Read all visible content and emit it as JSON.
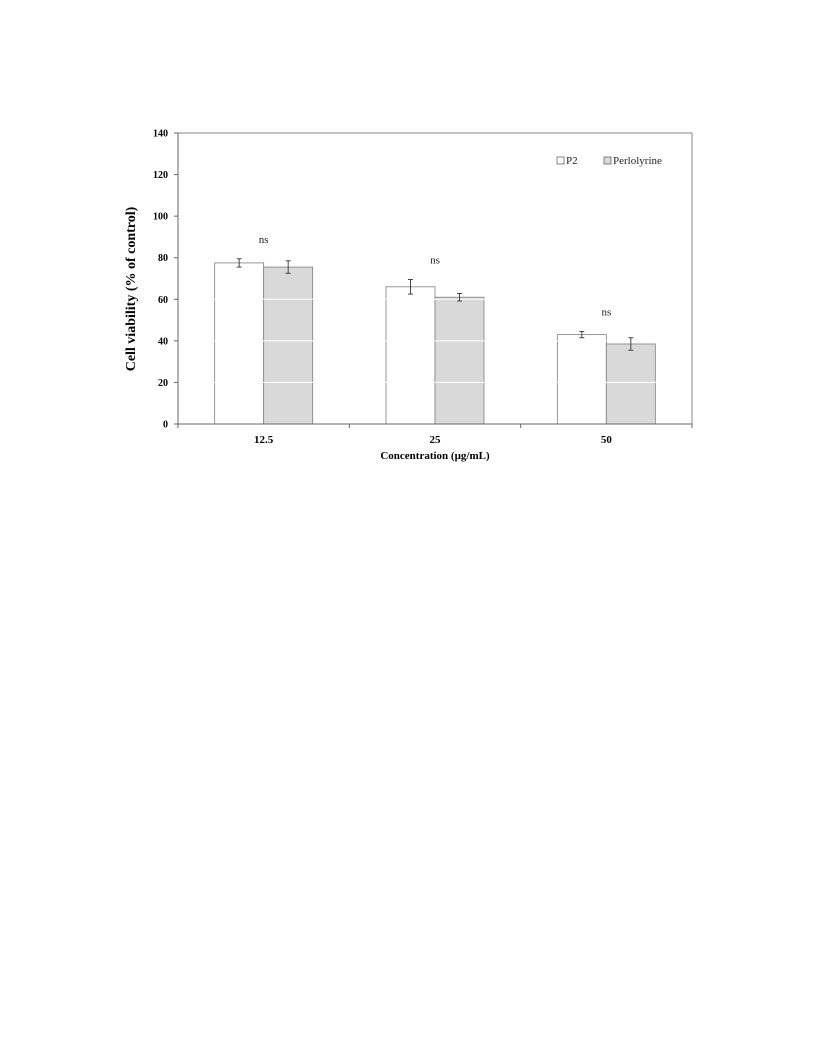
{
  "chart_data": {
    "type": "bar",
    "title": "",
    "xlabel": "Concentration (µg/mL)",
    "ylabel": "Cell viability (% of control)",
    "categories": [
      "12.5",
      "25",
      "50"
    ],
    "ylim": [
      0,
      140
    ],
    "yticks": [
      0,
      20,
      40,
      60,
      80,
      100,
      120,
      140
    ],
    "grid": "horizontal white lines inside bars",
    "legend_position": "top-right",
    "series": [
      {
        "name": "P2",
        "values": [
          77.5,
          66,
          43
        ],
        "errors": [
          2,
          3.5,
          1.5
        ],
        "color": "#ffffff"
      },
      {
        "name": "Perlolyrine",
        "values": [
          75.5,
          61,
          38.5
        ],
        "errors": [
          3,
          1.8,
          3
        ],
        "color": "#d9d9d9"
      }
    ],
    "annotations": [
      "ns",
      "ns",
      "ns"
    ]
  }
}
